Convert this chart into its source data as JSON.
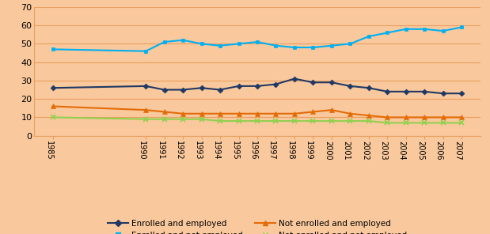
{
  "years": [
    1985,
    1990,
    1991,
    1992,
    1993,
    1994,
    1995,
    1996,
    1997,
    1998,
    1999,
    2000,
    2001,
    2002,
    2003,
    2004,
    2005,
    2006,
    2007
  ],
  "enrolled_employed": [
    26,
    27,
    25,
    25,
    26,
    25,
    27,
    27,
    28,
    31,
    29,
    29,
    27,
    26,
    24,
    24,
    24,
    23,
    23
  ],
  "enrolled_not_employed": [
    47,
    46,
    51,
    52,
    50,
    49,
    50,
    51,
    49,
    48,
    48,
    49,
    50,
    54,
    56,
    58,
    58,
    57,
    59
  ],
  "not_enrolled_employed": [
    16,
    14,
    13,
    12,
    12,
    12,
    12,
    12,
    12,
    12,
    13,
    14,
    12,
    11,
    10,
    10,
    10,
    10,
    10
  ],
  "not_enrolled_not_employed": [
    10,
    9,
    9,
    9,
    9,
    8,
    8,
    8,
    8,
    8,
    8,
    8,
    8,
    8,
    7,
    7,
    7,
    7,
    7
  ],
  "colors": {
    "enrolled_employed": "#1f3864",
    "enrolled_not_employed": "#00b0f0",
    "not_enrolled_employed": "#e36c09",
    "not_enrolled_not_employed": "#92d050"
  },
  "background_color": "#f9c89c",
  "grid_color": "#e8a060",
  "ylim": [
    0,
    70
  ],
  "yticks": [
    0,
    10,
    20,
    30,
    40,
    50,
    60,
    70
  ],
  "legend": {
    "enrolled_employed": "Enrolled and employed",
    "enrolled_not_employed": "Enrolled and not employed",
    "not_enrolled_employed": "Not enrolled and employed",
    "not_enrolled_not_employed": "Not enrolled and not employed"
  },
  "figsize": [
    6.19,
    2.96
  ],
  "dpi": 100
}
